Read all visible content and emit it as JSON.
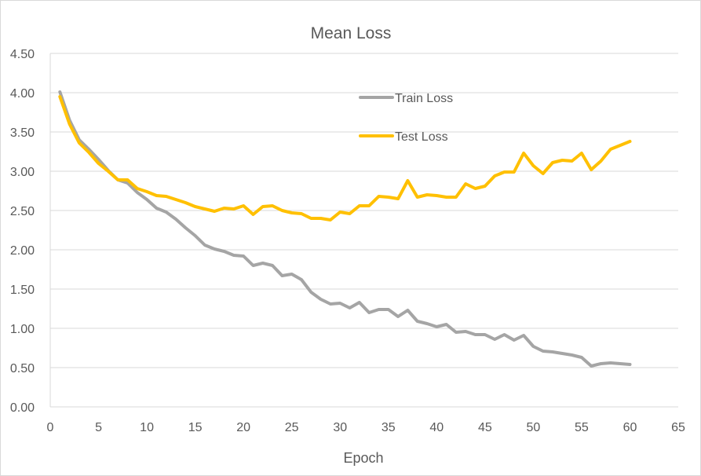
{
  "chart_data": {
    "type": "line",
    "title": "Mean Loss",
    "xlabel": "Epoch",
    "ylabel": "",
    "xlim": [
      0,
      65
    ],
    "ylim": [
      0,
      4.5
    ],
    "x_ticks": [
      "0",
      "5",
      "10",
      "15",
      "20",
      "25",
      "30",
      "35",
      "40",
      "45",
      "50",
      "55",
      "60",
      "65"
    ],
    "y_ticks": [
      "0.00",
      "0.50",
      "1.00",
      "1.50",
      "2.00",
      "2.50",
      "3.00",
      "3.50",
      "4.00",
      "4.50"
    ],
    "grid": true,
    "legend_position": "top-center inside plot",
    "x": [
      1,
      2,
      3,
      4,
      5,
      6,
      7,
      8,
      9,
      10,
      11,
      12,
      13,
      14,
      15,
      16,
      17,
      18,
      19,
      20,
      21,
      22,
      23,
      24,
      25,
      26,
      27,
      28,
      29,
      30,
      31,
      32,
      33,
      34,
      35,
      36,
      37,
      38,
      39,
      40,
      41,
      42,
      43,
      44,
      45,
      46,
      47,
      48,
      49,
      50,
      51,
      52,
      53,
      54,
      55,
      56,
      57,
      58,
      59,
      60
    ],
    "series": [
      {
        "name": "Train Loss",
        "color": "#a5a5a5",
        "values": [
          4.01,
          3.65,
          3.4,
          3.28,
          3.15,
          3.01,
          2.89,
          2.85,
          2.73,
          2.64,
          2.53,
          2.48,
          2.39,
          2.28,
          2.18,
          2.06,
          2.01,
          1.98,
          1.93,
          1.92,
          1.8,
          1.83,
          1.8,
          1.67,
          1.69,
          1.62,
          1.46,
          1.37,
          1.31,
          1.32,
          1.26,
          1.33,
          1.2,
          1.24,
          1.24,
          1.15,
          1.23,
          1.09,
          1.06,
          1.02,
          1.05,
          0.95,
          0.96,
          0.92,
          0.92,
          0.86,
          0.92,
          0.85,
          0.91,
          0.77,
          0.71,
          0.7,
          0.68,
          0.66,
          0.63,
          0.52,
          0.55,
          0.56,
          0.55,
          0.54
        ]
      },
      {
        "name": "Test Loss",
        "color": "#ffc000",
        "values": [
          3.95,
          3.6,
          3.36,
          3.24,
          3.1,
          3.0,
          2.89,
          2.89,
          2.78,
          2.74,
          2.69,
          2.68,
          2.64,
          2.6,
          2.55,
          2.52,
          2.49,
          2.53,
          2.52,
          2.56,
          2.45,
          2.55,
          2.56,
          2.5,
          2.47,
          2.46,
          2.4,
          2.4,
          2.38,
          2.48,
          2.46,
          2.56,
          2.56,
          2.68,
          2.67,
          2.65,
          2.88,
          2.67,
          2.7,
          2.69,
          2.67,
          2.67,
          2.84,
          2.78,
          2.81,
          2.94,
          2.99,
          2.99,
          3.23,
          3.07,
          2.97,
          3.11,
          3.14,
          3.13,
          3.23,
          3.02,
          3.13,
          3.28,
          3.33,
          3.38
        ]
      }
    ]
  }
}
